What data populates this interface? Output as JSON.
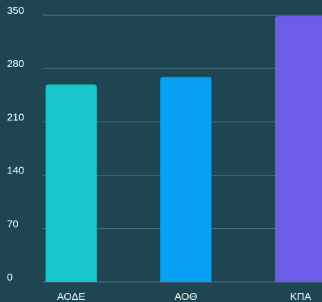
{
  "chart_data": {
    "type": "bar",
    "categories": [
      "ΑΟΔΕ",
      "ΑΟΘ",
      "ΚΠΑ"
    ],
    "values": [
      259,
      269,
      349
    ],
    "colors": [
      "#17c5cb",
      "#08a0f2",
      "#6c5ce7"
    ],
    "ylim": [
      0,
      350
    ],
    "yticks": [
      0,
      70,
      140,
      210,
      280,
      350
    ],
    "grid": true
  }
}
